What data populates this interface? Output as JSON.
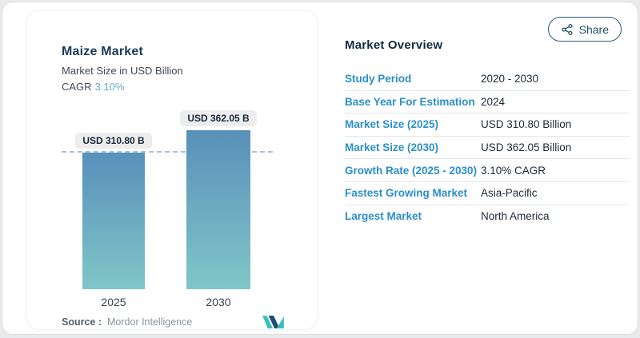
{
  "chart_card": {
    "title": "Maize Market",
    "subtitle": "Market Size in USD Billion",
    "cagr_label": "CAGR",
    "cagr_value": "3.10%",
    "source_label": "Source :",
    "source_value": "Mordor Intelligence",
    "logo": "mordor-intelligence-logo"
  },
  "chart_data": {
    "type": "bar",
    "title": "Maize Market",
    "subtitle": "Market Size in USD Billion",
    "unit": "USD Billion",
    "categories": [
      "2025",
      "2030"
    ],
    "values": [
      310.8,
      362.05
    ],
    "value_labels": [
      "USD 310.80 B",
      "USD 362.05 B"
    ],
    "ylim": [
      0,
      362.05
    ],
    "gridline": {
      "style": "dashed",
      "at": 310.8
    },
    "legend": "none",
    "bar_gradient_top": "#5890ba",
    "bar_gradient_bottom": "#80c6c8"
  },
  "overview": {
    "heading": "Market Overview",
    "rows": [
      {
        "label": "Study Period",
        "value": "2020 - 2030"
      },
      {
        "label": "Base Year For Estimation",
        "value": "2024"
      },
      {
        "label": "Market Size (2025)",
        "value": "USD 310.80 Billion"
      },
      {
        "label": "Market Size (2030)",
        "value": "USD 362.05 Billion"
      },
      {
        "label": "Growth Rate (2025 - 2030)",
        "value": "3.10% CAGR"
      },
      {
        "label": "Fastest Growing Market",
        "value": "Asia-Pacific"
      },
      {
        "label": "Largest Market",
        "value": "North America"
      }
    ]
  },
  "share_button": {
    "label": "Share",
    "icon": "share-nodes-icon"
  },
  "colors": {
    "accent_blue": "#2b8fc8",
    "heading_navy": "#13293f",
    "cagr_value_blue": "#6aa6cb",
    "bar_gradient_top": "#5890ba",
    "bar_gradient_bottom": "#80c6c8",
    "dashed_gridline": "#a7c2d3",
    "pill_background": "#ededed",
    "share_border": "#2a5d76",
    "logo_teal": "#3fbdbd",
    "logo_navy": "#1d4e73"
  }
}
